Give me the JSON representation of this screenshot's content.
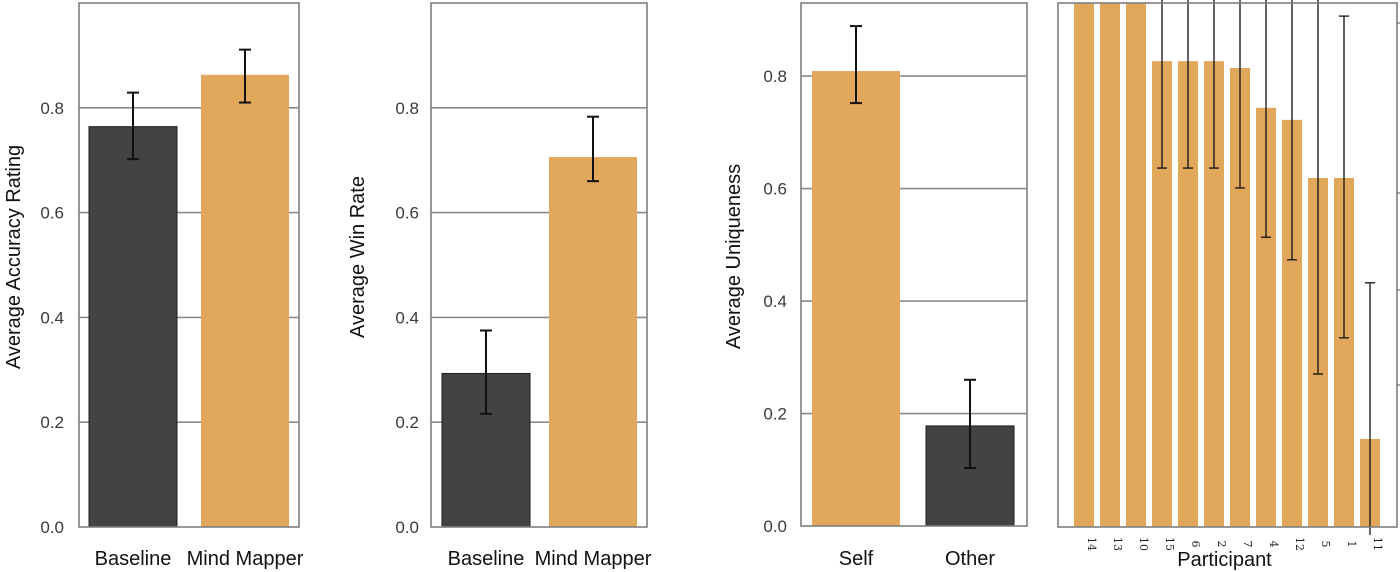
{
  "colors": {
    "baseline": "#434343",
    "mind_mapper": "#e1a75b",
    "grid": "#8a8a8a",
    "frame": "#7f7f7f",
    "errorbar": "#000000"
  },
  "chart_data": [
    {
      "type": "bar",
      "ylabel": "Average Accuracy Rating",
      "xlabel": "",
      "categories": [
        "Baseline",
        "Mind Mapper"
      ],
      "values": [
        0.764,
        0.863
      ],
      "error_low": [
        0.702,
        0.81
      ],
      "error_high": [
        0.829,
        0.911
      ],
      "bar_colors": [
        "baseline",
        "mind_mapper"
      ],
      "yticks": [
        "0.0",
        "0.2",
        "0.4",
        "0.6",
        "0.8"
      ],
      "ylim": [
        0,
        1.0
      ],
      "grid": true
    },
    {
      "type": "bar",
      "ylabel": "Average Win Rate",
      "xlabel": "",
      "categories": [
        "Baseline",
        "Mind Mapper"
      ],
      "values": [
        0.293,
        0.706
      ],
      "error_low": [
        0.216,
        0.66
      ],
      "error_high": [
        0.375,
        0.783
      ],
      "bar_colors": [
        "baseline",
        "mind_mapper"
      ],
      "yticks": [
        "0.0",
        "0.2",
        "0.4",
        "0.6",
        "0.8"
      ],
      "ylim": [
        0,
        1.0
      ],
      "grid": true
    },
    {
      "type": "bar",
      "ylabel": "Average Uniqueness",
      "xlabel": "",
      "categories": [
        "Self",
        "Other"
      ],
      "values": [
        0.809,
        0.178
      ],
      "error_low": [
        0.752,
        0.103
      ],
      "error_high": [
        0.889,
        0.26
      ],
      "bar_colors": [
        "mind_mapper",
        "baseline"
      ],
      "yticks": [
        "0.0",
        "0.2",
        "0.4",
        "0.6",
        "0.8"
      ],
      "ylim": [
        0,
        0.93
      ],
      "grid": true
    },
    {
      "type": "bar",
      "ylabel": "",
      "xlabel": "Participant",
      "categories": [
        "14",
        "13",
        "10",
        "15",
        "6",
        "2",
        "7",
        "4",
        "12",
        "5",
        "1",
        "11"
      ],
      "values": [
        1.0,
        1.0,
        1.0,
        0.889,
        0.889,
        0.889,
        0.876,
        0.8,
        0.777,
        0.666,
        0.666,
        0.168
      ],
      "error_low": [
        1.0,
        1.0,
        1.0,
        0.685,
        0.685,
        0.685,
        0.647,
        0.553,
        0.51,
        0.292,
        0.361,
        0.0
      ],
      "error_high": [
        1.0,
        1.0,
        1.0,
        1.1,
        1.1,
        1.1,
        1.1,
        1.1,
        1.1,
        1.1,
        0.975,
        0.466
      ],
      "bar_colors": [
        "mind_mapper"
      ],
      "yticks": [],
      "ylim": [
        0,
        1.0
      ],
      "grid": false
    }
  ]
}
